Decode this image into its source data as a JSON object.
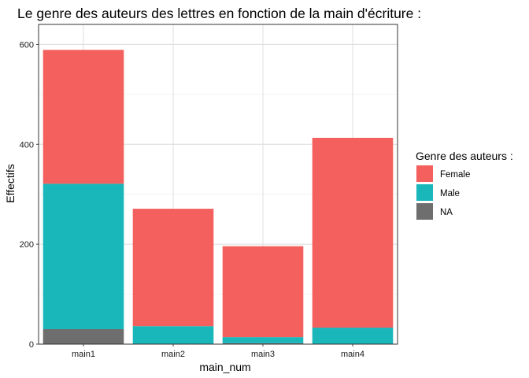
{
  "chart_data": {
    "type": "bar",
    "stacked": true,
    "title": "Le genre des auteurs des lettres en fonction de la main d'écriture :",
    "xlabel": "main_num",
    "ylabel": "Effectifs",
    "categories": [
      "main1",
      "main2",
      "main3",
      "main4"
    ],
    "series": [
      {
        "name": "NA",
        "color": "#6e6e6e",
        "values": [
          30,
          0,
          2,
          0
        ]
      },
      {
        "name": "Male",
        "color": "#19b6ba",
        "values": [
          291,
          36,
          12,
          33
        ]
      },
      {
        "name": "Female",
        "color": "#f4605d",
        "values": [
          268,
          235,
          182,
          380
        ]
      }
    ],
    "ylim": [
      0,
      640
    ],
    "yticks": [
      0,
      200,
      400,
      600
    ],
    "grid": true,
    "legend": {
      "title": "Genre des auteurs :",
      "placement": "right",
      "order": [
        "Female",
        "Male",
        "NA"
      ]
    }
  }
}
